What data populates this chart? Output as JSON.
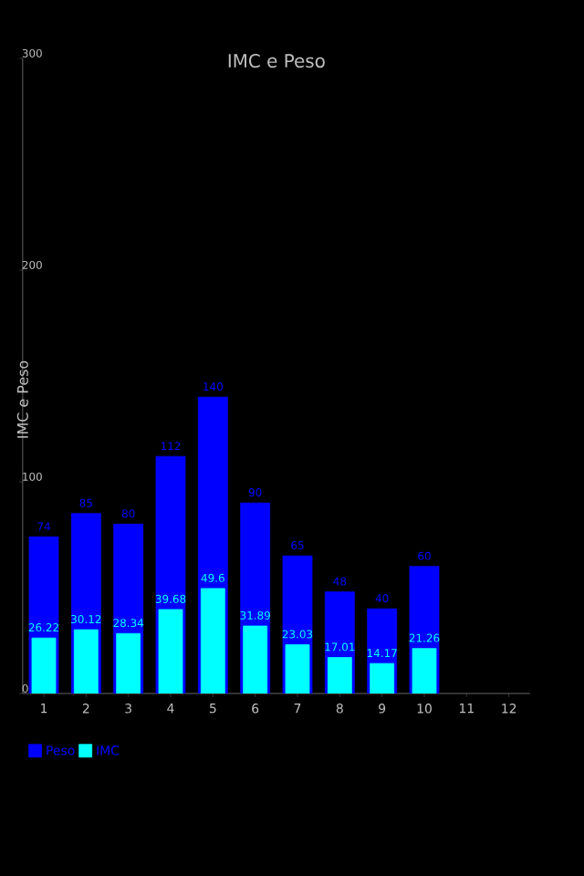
{
  "chart_data": {
    "type": "bar",
    "title": "IMC e Peso",
    "ylabel": "IMC e Peso",
    "categories": [
      "1",
      "2",
      "3",
      "4",
      "5",
      "6",
      "7",
      "8",
      "9",
      "10",
      "11",
      "12"
    ],
    "series": [
      {
        "name": "Peso",
        "color": "#0000ff",
        "values": [
          74,
          85,
          80,
          112,
          140,
          90,
          65,
          48,
          40,
          60,
          null,
          null
        ]
      },
      {
        "name": "IMC",
        "color": "#00ffff",
        "values": [
          26.22,
          30.12,
          28.34,
          39.68,
          49.6,
          31.89,
          23.03,
          17.01,
          14.17,
          21.26,
          null,
          null
        ]
      }
    ],
    "ylim": [
      0,
      300
    ],
    "yticks": [
      0,
      100,
      200,
      300
    ],
    "data_labels": true,
    "legend": "bottom left",
    "grid": false
  }
}
